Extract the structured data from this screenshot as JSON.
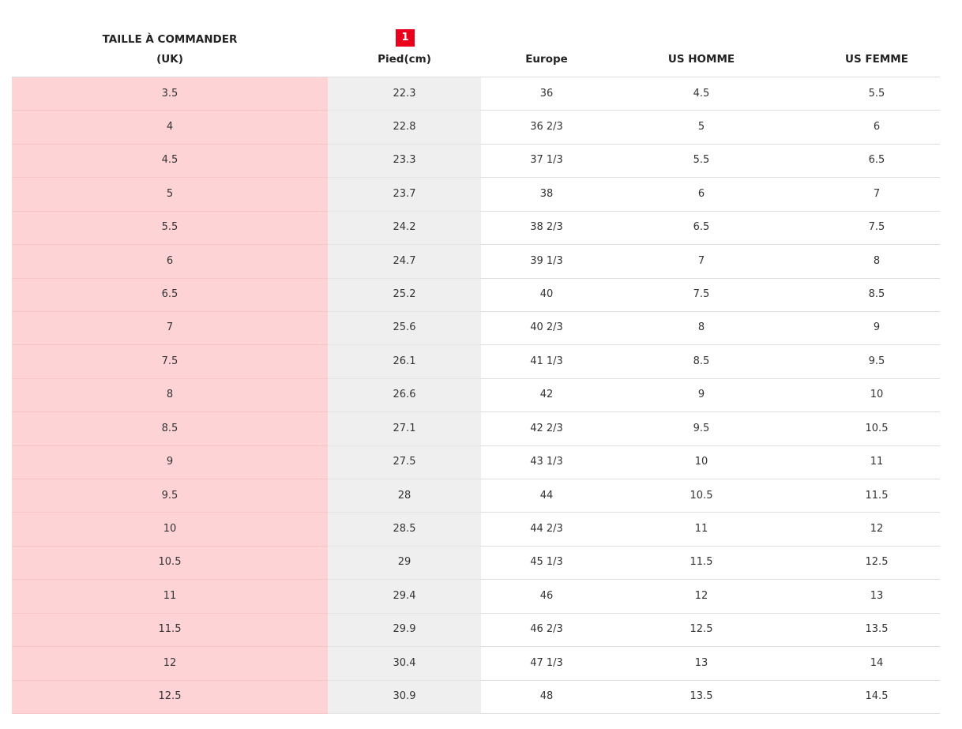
{
  "table": {
    "columns": [
      {
        "label": [
          "TAILLE À COMMANDER",
          "(UK)"
        ]
      },
      {
        "badge": "1",
        "label": [
          "Pied(cm)"
        ]
      },
      {
        "label": [
          "Europe"
        ]
      },
      {
        "label": [
          "US HOMME"
        ]
      },
      {
        "label": [
          "US FEMME"
        ]
      }
    ],
    "rows": [
      [
        3.5,
        22.3,
        36,
        4.5,
        5.5
      ],
      [
        4,
        22.8,
        "36 2/3",
        5,
        6
      ],
      [
        4.5,
        23.3,
        "37 1/3",
        5.5,
        6.5
      ],
      [
        5,
        23.7,
        38,
        6,
        7
      ],
      [
        5.5,
        24.2,
        "38 2/3",
        6.5,
        7.5
      ],
      [
        6,
        24.7,
        "39 1/3",
        7,
        8
      ],
      [
        6.5,
        25.2,
        40,
        7.5,
        8.5
      ],
      [
        7,
        25.6,
        "40 2/3",
        8,
        9
      ],
      [
        7.5,
        26.1,
        "41 1/3",
        8.5,
        9.5
      ],
      [
        8,
        26.6,
        42,
        9,
        10
      ],
      [
        8.5,
        27.1,
        "42 2/3",
        9.5,
        10.5
      ],
      [
        9,
        27.5,
        "43 1/3",
        10,
        11
      ],
      [
        9.5,
        28,
        44,
        10.5,
        11.5
      ],
      [
        10,
        28.5,
        "44 2/3",
        11,
        12
      ],
      [
        10.5,
        29,
        "45 1/3",
        11.5,
        12.5
      ],
      [
        11,
        29.4,
        46,
        12,
        13
      ],
      [
        11.5,
        29.9,
        "46 2/3",
        12.5,
        13.5
      ],
      [
        12,
        30.4,
        "47 1/3",
        13,
        14
      ],
      [
        12.5,
        30.9,
        48,
        13.5,
        14.5
      ]
    ]
  }
}
